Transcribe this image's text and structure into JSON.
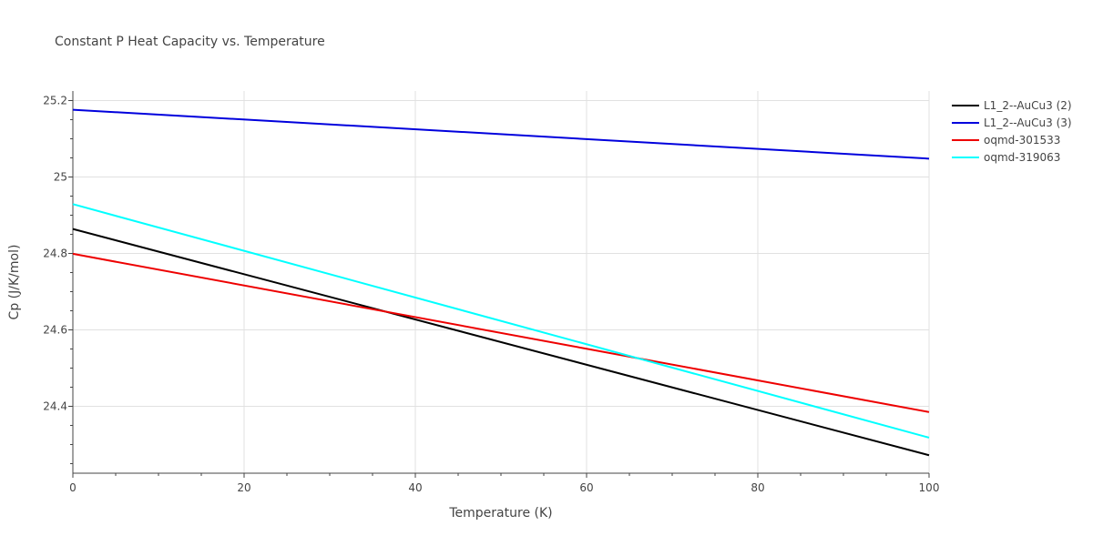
{
  "chart_data": {
    "type": "line",
    "title": "Constant P Heat Capacity vs. Temperature",
    "xlabel": "Temperature (K)",
    "ylabel": "Cp (J/K/mol)",
    "xlim": [
      0,
      100
    ],
    "ylim": [
      24.225,
      25.225
    ],
    "x_ticks": [
      0,
      20,
      40,
      60,
      80,
      100
    ],
    "y_ticks": [
      24.4,
      24.6,
      24.8,
      25,
      25.2
    ],
    "x_tick_labels": [
      "0",
      "20",
      "40",
      "60",
      "80",
      "100"
    ],
    "y_tick_labels": [
      "24.4",
      "24.6",
      "24.8",
      "25",
      "25.2"
    ],
    "grid": true,
    "legend_position": "top-right",
    "series": [
      {
        "name": "L1_2--AuCu3 (2)",
        "color": "#000000",
        "x": [
          0,
          100
        ],
        "y": [
          24.864,
          24.272
        ]
      },
      {
        "name": "L1_2--AuCu3 (3)",
        "color": "#0000dd",
        "x": [
          0,
          100
        ],
        "y": [
          25.176,
          25.048
        ]
      },
      {
        "name": "oqmd-301533",
        "color": "#ee0000",
        "x": [
          0,
          100
        ],
        "y": [
          24.799,
          24.385
        ]
      },
      {
        "name": "oqmd-319063",
        "color": "#00ffff",
        "x": [
          0,
          100
        ],
        "y": [
          24.929,
          24.318
        ]
      }
    ]
  }
}
